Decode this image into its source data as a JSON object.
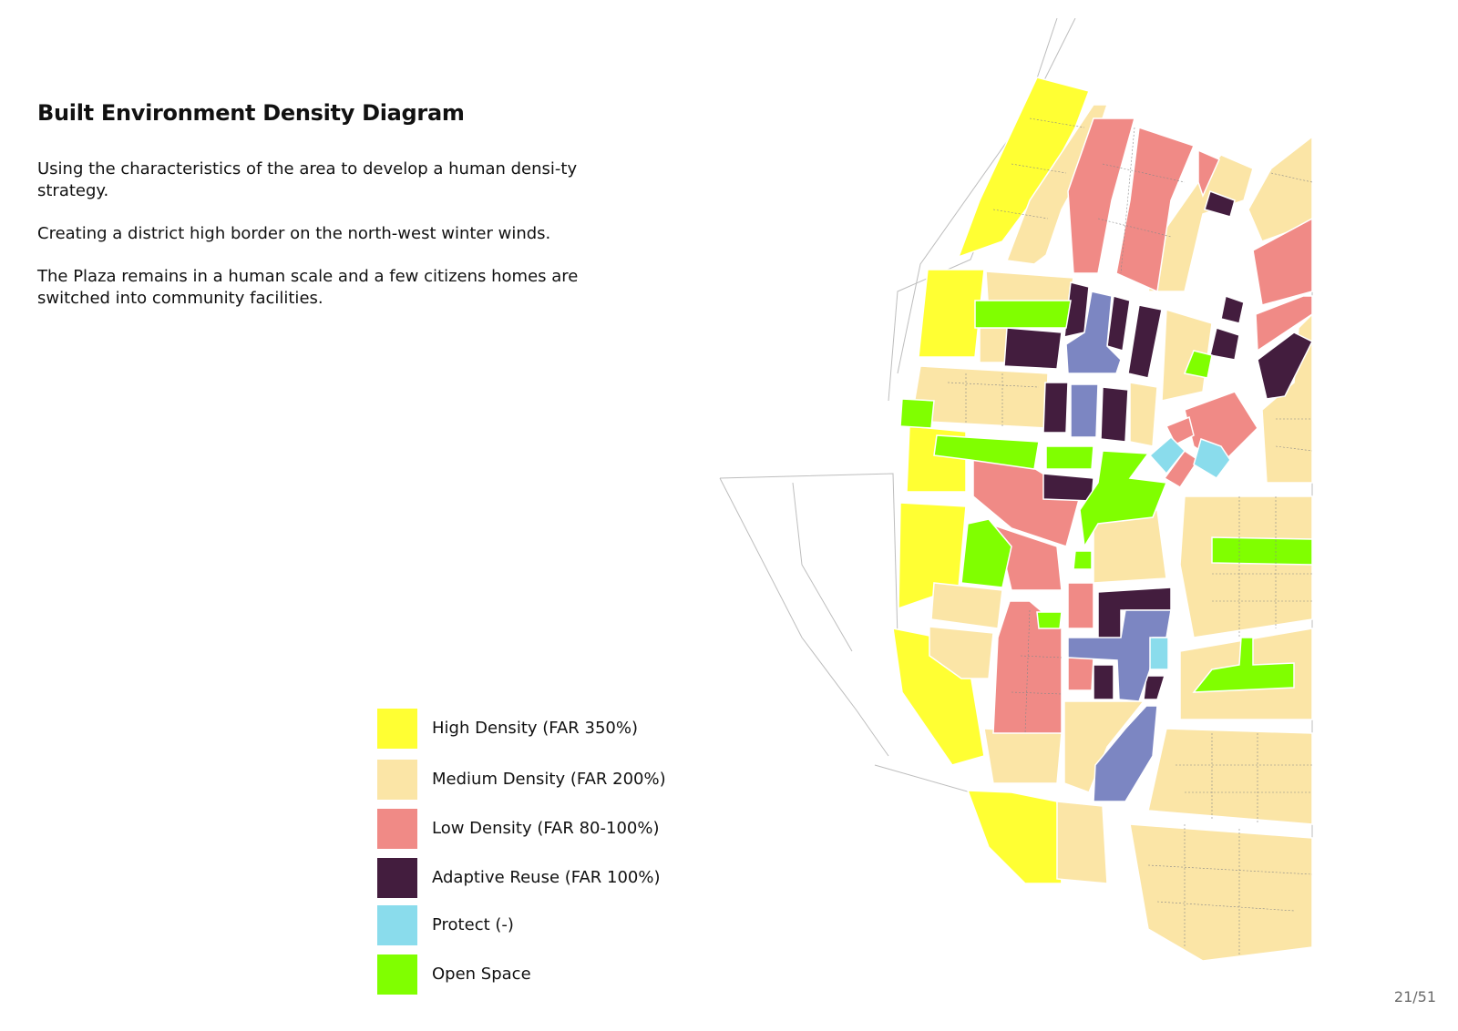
{
  "title": "Built Environment Density Diagram",
  "paragraphs": [
    "Using the characteristics of the area to develop a human densi-ty strategy.",
    "Creating a district high border on the north-west winter winds.",
    "The Plaza remains in a human scale and a few citizens homes are switched into community facilities."
  ],
  "legend": [
    {
      "label": "High Density (FAR 350%)",
      "color": "#ffff33"
    },
    {
      "label": "Medium Density (FAR 200%)",
      "color": "#fbe5a6"
    },
    {
      "label": "Low Density (FAR 80-100%)",
      "color": "#f08a86"
    },
    {
      "label": "Adaptive Reuse (FAR 100%)",
      "color": "#431d3e"
    },
    {
      "label": "Protect (-)",
      "color": "#8adcec"
    },
    {
      "label": "Open Space",
      "color": "#80ff00"
    }
  ],
  "plaza_color": "#7c86c2",
  "page_number": "21/51"
}
